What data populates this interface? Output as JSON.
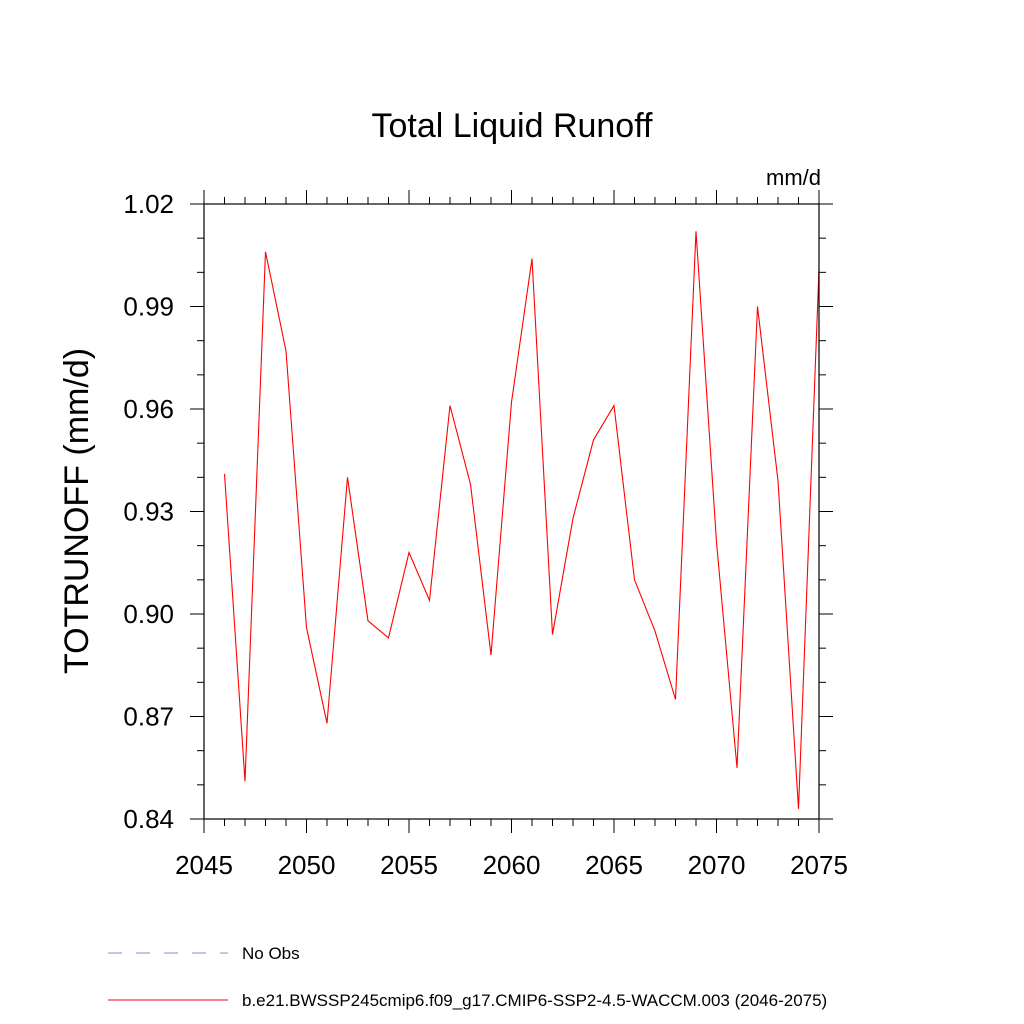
{
  "chart_data": {
    "type": "line",
    "title": "Total Liquid Runoff",
    "units": "mm/d",
    "ylabel": "TOTRUNOFF  (mm/d)",
    "xlabel": "",
    "xlim": [
      2045,
      2075
    ],
    "ylim": [
      0.84,
      1.02
    ],
    "x_ticks": [
      2045,
      2050,
      2055,
      2060,
      2065,
      2070,
      2075
    ],
    "x_tick_labels": [
      "2045",
      "2050",
      "2055",
      "2060",
      "2065",
      "2070",
      "2075"
    ],
    "y_ticks": [
      0.84,
      0.87,
      0.9,
      0.93,
      0.96,
      0.99,
      1.02
    ],
    "y_tick_labels": [
      "0.84",
      "0.87",
      "0.90",
      "0.93",
      "0.96",
      "0.99",
      "1.02"
    ],
    "grid": false,
    "legend_placement": "bottom",
    "series": [
      {
        "name": "b.e21.BWSSP245cmip6.f09_g17.CMIP6-SSP2-4.5-WACCM.003 (2046-2075)",
        "color": "#ff0000",
        "style": "solid",
        "x": [
          2046,
          2047,
          2048,
          2049,
          2050,
          2051,
          2052,
          2053,
          2054,
          2055,
          2056,
          2057,
          2058,
          2059,
          2060,
          2061,
          2062,
          2063,
          2064,
          2065,
          2066,
          2067,
          2068,
          2069,
          2070,
          2071,
          2072,
          2073,
          2074,
          2075
        ],
        "values": [
          0.941,
          0.851,
          1.006,
          0.977,
          0.896,
          0.868,
          0.94,
          0.898,
          0.893,
          0.918,
          0.904,
          0.961,
          0.938,
          0.888,
          0.962,
          1.004,
          0.894,
          0.928,
          0.951,
          0.961,
          0.91,
          0.895,
          0.875,
          1.012,
          0.921,
          0.855,
          0.99,
          0.939,
          0.843,
          1.001
        ]
      }
    ],
    "legend": [
      {
        "label": "No Obs",
        "color": "#8a88c8",
        "style": "dashed"
      },
      {
        "label": "b.e21.BWSSP245cmip6.f09_g17.CMIP6-SSP2-4.5-WACCM.003 (2046-2075)",
        "color": "#ff0000",
        "style": "solid"
      }
    ]
  }
}
